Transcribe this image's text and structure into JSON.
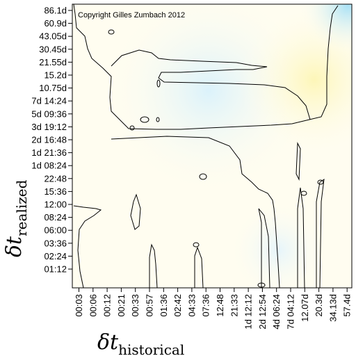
{
  "chart_data": {
    "type": "heatmap",
    "annotation": "Copyright Gilles Zumbach 2012",
    "xlabel": "δt historical",
    "xlabel_main": "δt",
    "xlabel_sub": "historical",
    "ylabel": "δt realized",
    "ylabel_main": "δt",
    "ylabel_sub": "realized",
    "x_ticks": [
      "00:03",
      "00:06",
      "00:12",
      "00:21",
      "00:33",
      "00:57",
      "01:36",
      "02:42",
      "04:33",
      "07:36",
      "12:48",
      "21:33",
      "1d 12:12",
      "2d 12:54",
      "4d 06:24",
      "7d 04:12",
      "12.07d",
      "20.3d",
      "34.13d",
      "57.4d"
    ],
    "y_ticks": [
      "86.1d",
      "60.9d",
      "43.05d",
      "30.45d",
      "21.55d",
      "15.2d",
      "10.75d",
      "7d 14:24",
      "5d 09:36",
      "3d 19:12",
      "2d 16:48",
      "1d 21:36",
      "1d 08:24",
      "22:48",
      "15:36",
      "12:00",
      "08:24",
      "06:00",
      "03:36",
      "02:24",
      "01:12"
    ],
    "colors": {
      "background": "#fffdf0",
      "light_blue": "#e3f4fb",
      "blue": "#b9e6f7",
      "yellow": "#fdf7bf",
      "contour": "#000000"
    },
    "grid": false
  }
}
